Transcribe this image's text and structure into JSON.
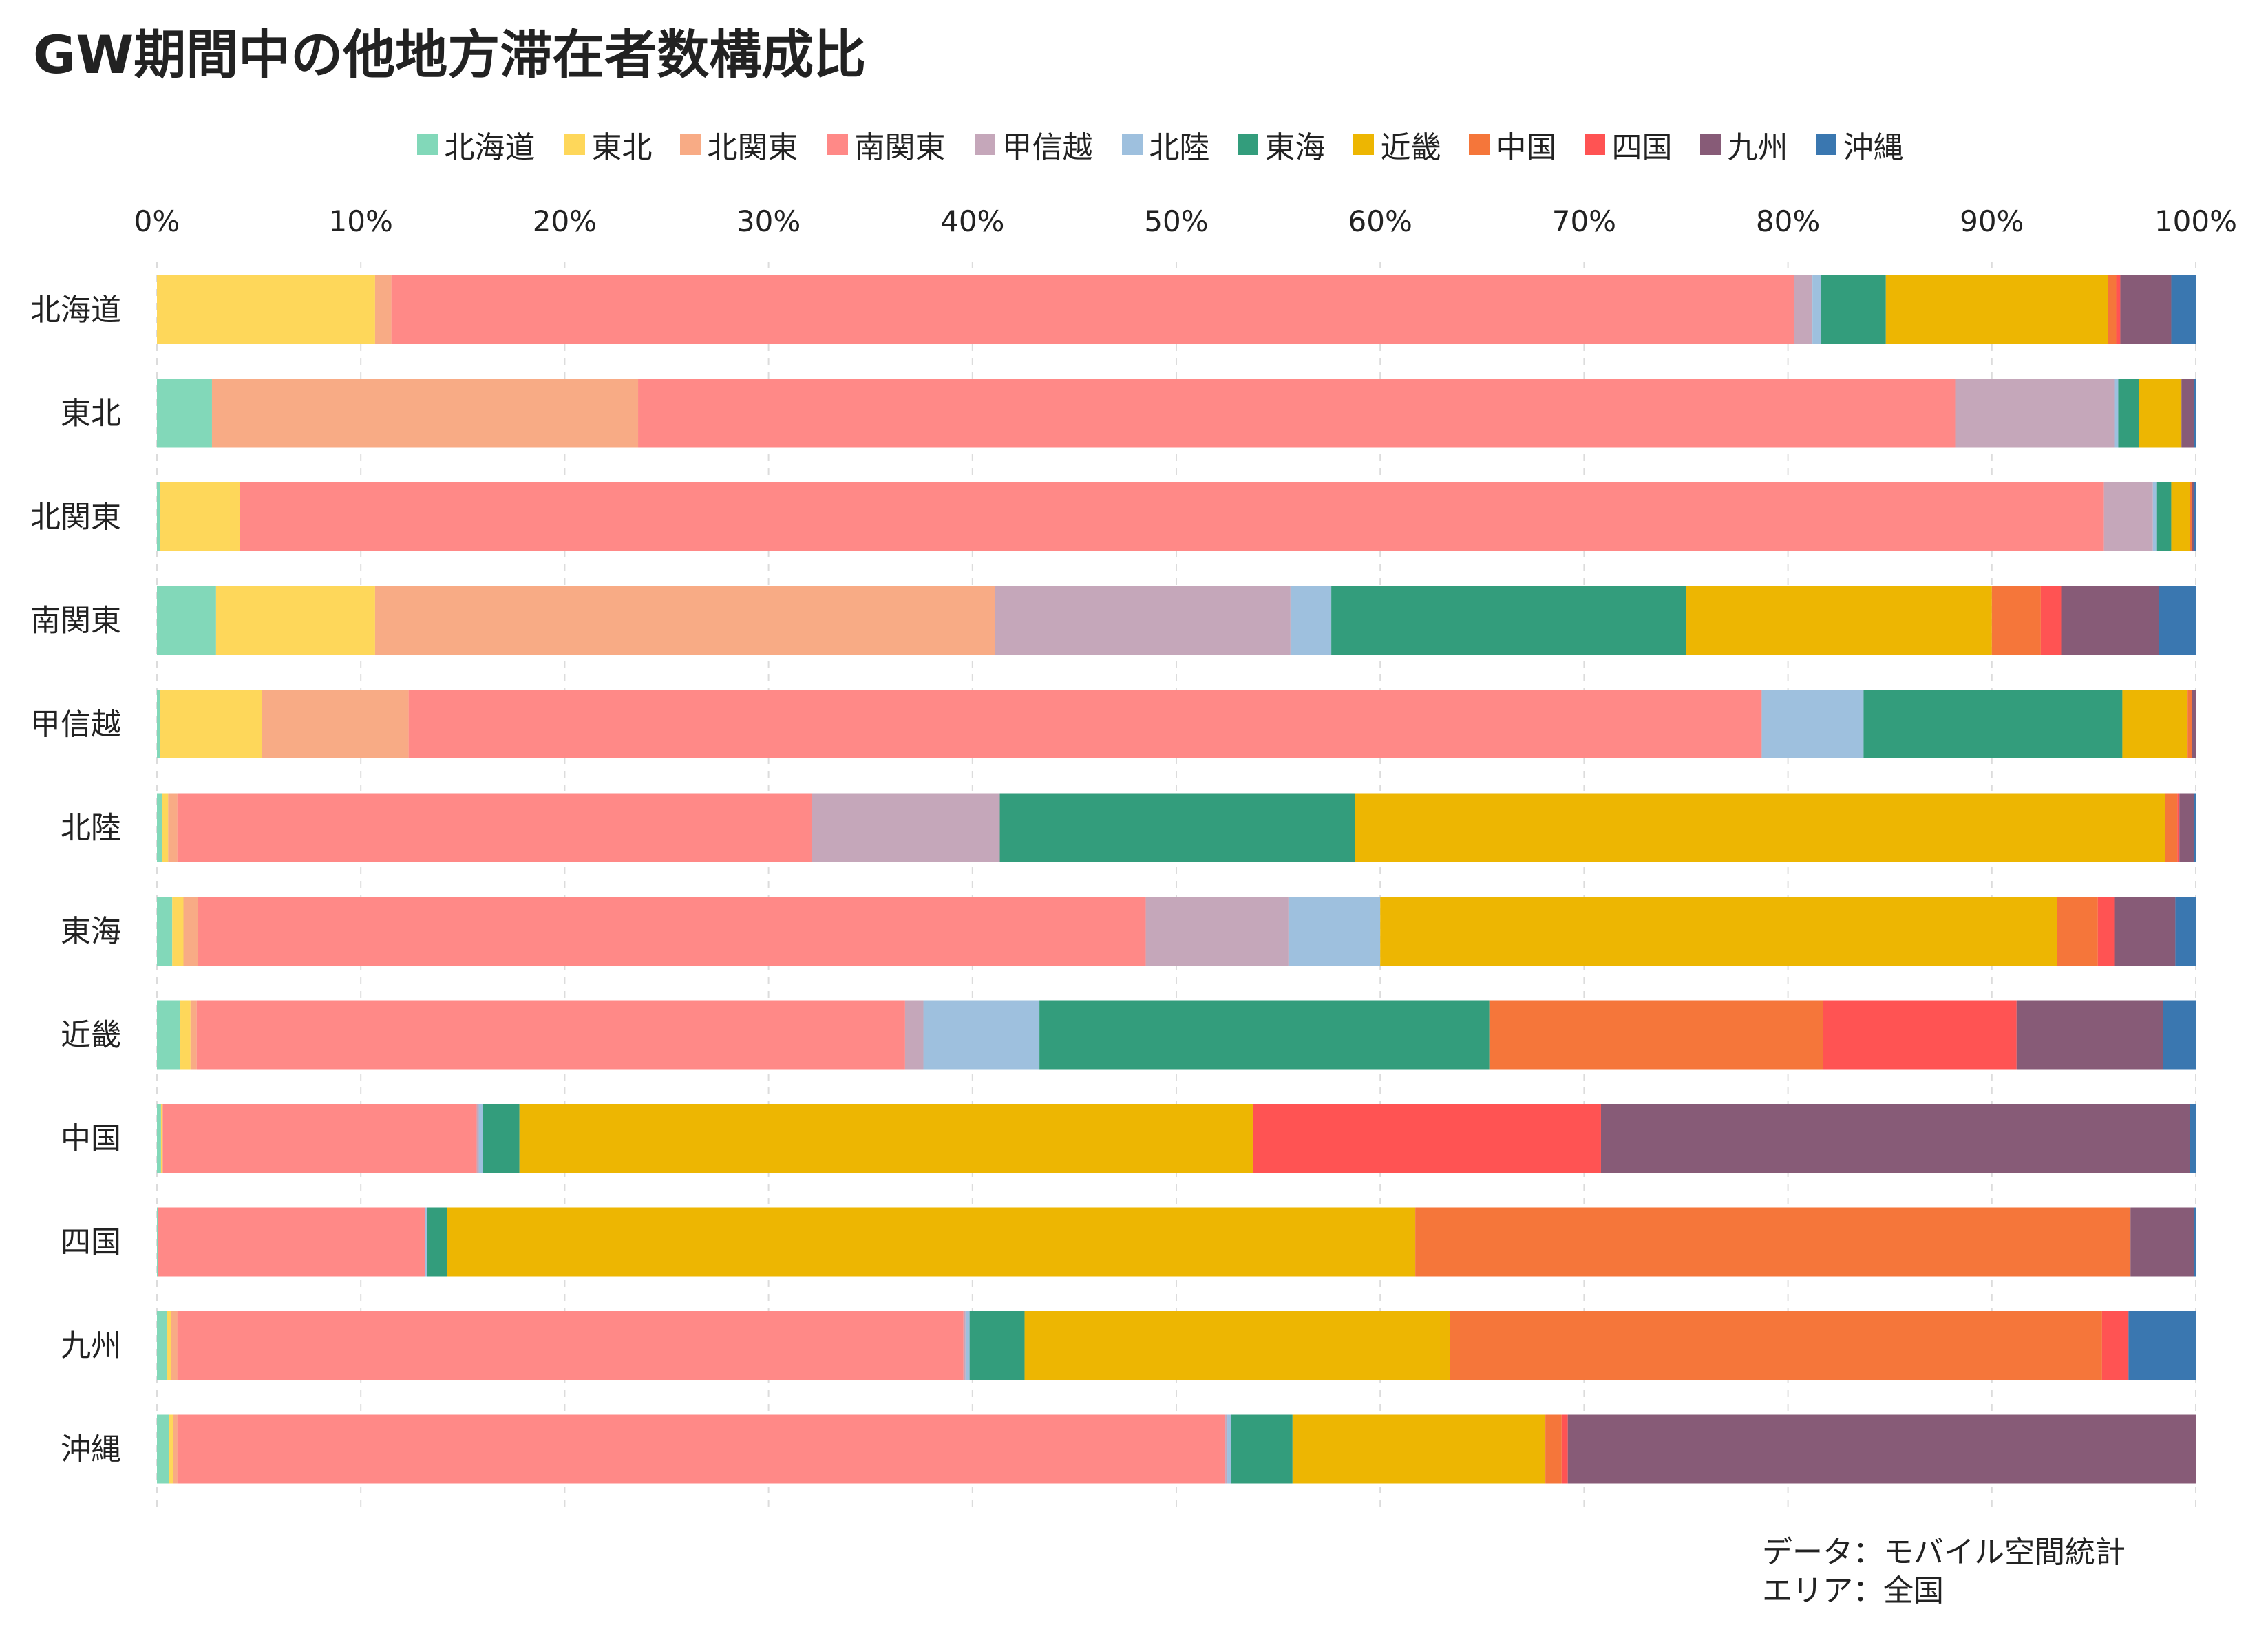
{
  "title": "GW期間中の他地方滞在者数構成比",
  "note": {
    "line1": "データ：モバイル空間統計",
    "line2": "エリア：全国"
  },
  "chart_data": {
    "type": "bar",
    "orientation": "horizontal",
    "stacked": true,
    "normalized": true,
    "categories": [
      "北海道",
      "東北",
      "北関東",
      "南関東",
      "甲信越",
      "北陸",
      "東海",
      "近畿",
      "中国",
      "四国",
      "九州",
      "沖縄"
    ],
    "xlim": [
      0,
      100
    ],
    "xticks": [
      "0%",
      "10%",
      "20%",
      "30%",
      "40%",
      "50%",
      "60%",
      "70%",
      "80%",
      "90%",
      "100%"
    ],
    "xaxis_position": "top",
    "grid": true,
    "legend_position": "top-center",
    "series": [
      {
        "name": "北海道",
        "color": "#82d8b9",
        "values": [
          0,
          2.7,
          0.15,
          2.9,
          0.15,
          0.25,
          0.75,
          1.15,
          0.2,
          0.05,
          0.5,
          0.6
        ]
      },
      {
        "name": "東北",
        "color": "#fed75a",
        "values": [
          10.7,
          0,
          3.9,
          7.8,
          5.0,
          0.3,
          0.55,
          0.5,
          0.05,
          0,
          0.2,
          0.2
        ]
      },
      {
        "name": "北関東",
        "color": "#f8ab85",
        "values": [
          0.8,
          20.9,
          0,
          30.4,
          7.2,
          0.45,
          0.7,
          0.3,
          0.05,
          0,
          0.3,
          0.2
        ]
      },
      {
        "name": "南関東",
        "color": "#ff8987",
        "values": [
          68.8,
          64.6,
          91.4,
          0,
          66.4,
          31.1,
          46.5,
          34.8,
          15.4,
          13.1,
          38.6,
          51.4
        ]
      },
      {
        "name": "甲信越",
        "color": "#c5a7ba",
        "values": [
          0.9,
          7.8,
          2.4,
          14.5,
          0,
          9.2,
          7.0,
          0.9,
          0.1,
          0,
          0.1,
          0.1
        ]
      },
      {
        "name": "北陸",
        "color": "#9ec0de",
        "values": [
          0.4,
          0.2,
          0.2,
          2.0,
          5.0,
          0,
          4.5,
          5.7,
          0.2,
          0.1,
          0.2,
          0.2
        ]
      },
      {
        "name": "東海",
        "color": "#339d7c",
        "values": [
          3.2,
          1.0,
          0.7,
          17.4,
          12.7,
          17.4,
          0,
          22.1,
          1.8,
          1.0,
          2.7,
          3.0
        ]
      },
      {
        "name": "近畿",
        "color": "#edb602",
        "values": [
          10.9,
          2.1,
          0.9,
          15.0,
          3.2,
          39.7,
          33.2,
          0,
          36.0,
          47.5,
          20.9,
          12.4
        ]
      },
      {
        "name": "中国",
        "color": "#f5763a",
        "values": [
          0.4,
          0,
          0.1,
          2.4,
          0.2,
          0.6,
          2.0,
          16.4,
          0,
          35.1,
          32.0,
          0.8
        ]
      },
      {
        "name": "四国",
        "color": "#ff5353",
        "values": [
          0.2,
          0,
          0,
          1.0,
          0,
          0.1,
          0.8,
          9.5,
          17.1,
          0,
          1.3,
          0.3
        ]
      },
      {
        "name": "九州",
        "color": "#875b77",
        "values": [
          2.5,
          0.6,
          0.1,
          4.8,
          0.2,
          0.7,
          3.0,
          7.2,
          28.9,
          3.1,
          0,
          30.8
        ]
      },
      {
        "name": "沖縄",
        "color": "#3a77b0",
        "values": [
          1.2,
          0.1,
          0.1,
          1.8,
          0,
          0.1,
          1.0,
          1.6,
          0.3,
          0.1,
          3.3,
          0
        ]
      }
    ]
  }
}
